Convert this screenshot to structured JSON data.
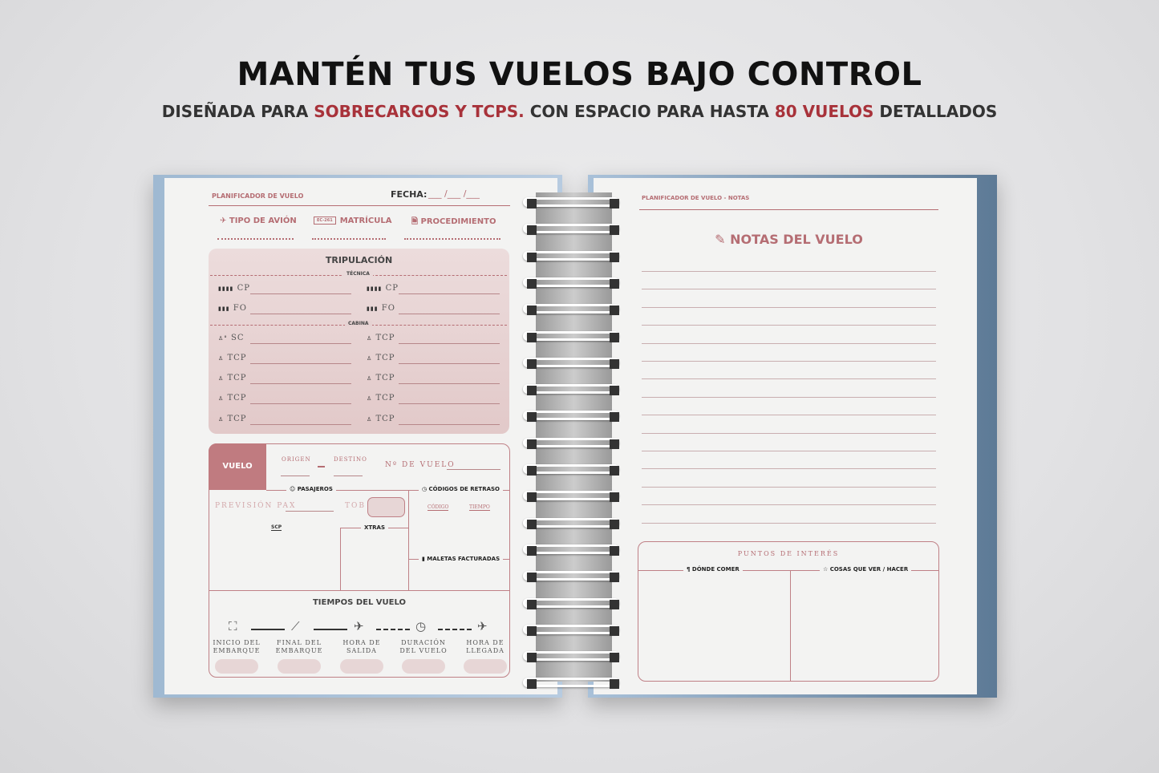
{
  "header": {
    "title": "MANTÉN TUS VUELOS BAJO CONTROL",
    "sub_1": "DISEÑADA PARA ",
    "sub_2": "SOBRECARGOS Y TCPS.",
    "sub_3": " CON ESPACIO PARA HASTA ",
    "sub_4": "80 VUELOS",
    "sub_5": " DETALLADOS"
  },
  "colors": {
    "accent": "#a8323a",
    "rose": "#b56d73",
    "cover": "#a9c1d9"
  },
  "left": {
    "page_label": "PLANIFICADOR DE VUELO",
    "fecha": "FECHA:",
    "fecha_blank": "___ /___ /___",
    "fields": [
      {
        "icon": "airplane-icon",
        "label": "TIPO DE AVIÓN"
      },
      {
        "icon": "plate-icon",
        "label": "MATRÍCULA",
        "badge": "EC-261"
      },
      {
        "icon": "document-icon",
        "label": "PROCEDIMIENTO"
      }
    ],
    "crew": {
      "title": "TRIPULACIÓN",
      "tecnica": "TÉCNICA",
      "cabina": "CABINA",
      "cp": "CP",
      "fo": "FO",
      "sc": "SC",
      "tcp": "TCP"
    },
    "flight": {
      "vuelo": "VUELO",
      "origen": "ORIGEN",
      "destino": "DESTINO",
      "numero": "Nº DE VUELO",
      "pasajeros": "PASAJEROS",
      "codigos": "CÓDIGOS DE RETRASO",
      "prevision": "PREVISIÓN PAX",
      "tob": "TOB",
      "codigo": "CÓDIGO",
      "tiempo": "TIEMPO",
      "scp": "SCP",
      "xtras": "XTRAS",
      "maletas": "MALETAS FACTURADAS"
    },
    "times": {
      "title": "TIEMPOS DEL VUELO",
      "steps": [
        {
          "l1": "INICIO DEL",
          "l2": "EMBARQUE"
        },
        {
          "l1": "FINAL DEL",
          "l2": "EMBARQUE"
        },
        {
          "l1": "HORA DE",
          "l2": "SALIDA"
        },
        {
          "l1": "DURACIÓN",
          "l2": "DEL VUELO"
        },
        {
          "l1": "HORA DE",
          "l2": "LLEGADA"
        }
      ]
    }
  },
  "right": {
    "page_label": "PLANIFICADOR DE VUELO - NOTAS",
    "title": "NOTAS DEL VUELO",
    "puntos": "PUNTOS DE INTERÉS",
    "comer": "DÓNDE COMER",
    "cosas": "COSAS QUE VER / HACER"
  }
}
